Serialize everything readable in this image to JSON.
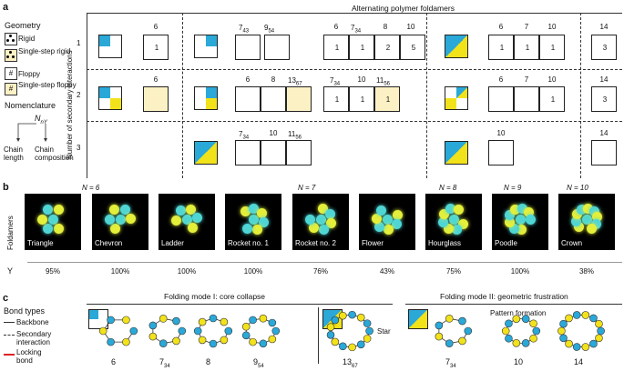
{
  "panel_a": {
    "letter": "a",
    "title": "Alternating polymer foldamers",
    "legend_title": "Geometry",
    "legend": [
      "Rigid",
      "Single-step rigid",
      "Floppy",
      "Single-step floppy"
    ],
    "legend_rigid2": "rigid",
    "legend_floppy2": "floppy",
    "nomen_title": "Nomenclature",
    "nomen_formula": "N",
    "nomen_sub": "n",
    "nomen_sub2": "B",
    "nomen_sub3": "n",
    "nomen_sub4": "Y",
    "chain_length": "Chain length",
    "chain_comp": "Chain composition",
    "yaxis": "Number of secondary interactions",
    "rows": [
      "1",
      "2",
      "3"
    ],
    "row1": {
      "g1": "6",
      "g2": [
        "7",
        "43",
        "9",
        "54"
      ],
      "g3": [
        "6",
        "7",
        "34",
        "8",
        "10"
      ],
      "g3v": [
        "1",
        "1",
        "2",
        "5"
      ],
      "g4": [
        "6",
        "7",
        "10"
      ],
      "g4v": [
        "1",
        "1",
        "1"
      ],
      "g5": "14",
      "g5v": "3",
      "g1v": "1"
    },
    "row2": {
      "g1": "6",
      "g2": [
        "6",
        "8",
        "13",
        "67"
      ],
      "g3": [
        "7",
        "34",
        "10",
        "11",
        "56"
      ],
      "g3v": [
        "1",
        "1",
        "1"
      ],
      "g4": [
        "6",
        "7",
        "10"
      ],
      "g4v": [
        "1"
      ],
      "g5": "14",
      "g5v": "3"
    },
    "row3": {
      "g2": [
        "7",
        "34",
        "10",
        "11",
        "56"
      ],
      "g4": [
        "10"
      ],
      "g5": "14"
    }
  },
  "panel_b": {
    "letter": "b",
    "ylabel": "Foldamers",
    "groups": [
      "N = 6",
      "N = 7",
      "N = 8",
      "N = 9",
      "N = 10"
    ],
    "y_label": "Y",
    "items": [
      {
        "name": "Triangle",
        "yield": "95%"
      },
      {
        "name": "Chevron",
        "yield": "100%"
      },
      {
        "name": "Ladder",
        "yield": "100%"
      },
      {
        "name": "Rocket no. 1",
        "yield": "100%"
      },
      {
        "name": "Rocket no. 2",
        "yield": "76%"
      },
      {
        "name": "Flower",
        "yield": "43%"
      },
      {
        "name": "Hourglass",
        "yield": "75%"
      },
      {
        "name": "Poodle",
        "yield": "100%"
      },
      {
        "name": "Crown",
        "yield": "38%"
      }
    ]
  },
  "panel_c": {
    "letter": "c",
    "mode1": "Folding mode I: core collapse",
    "mode2": "Folding mode II: geometric frustration",
    "bond_title": "Bond types",
    "bonds": [
      "Backbone",
      "Secondary interaction",
      "Locking bond"
    ],
    "bond2a": "Secondary",
    "bond2b": "interaction",
    "bond3a": "Locking",
    "bond3b": "bond",
    "star": "Star",
    "pattern": "Pattern formation",
    "labels": [
      {
        "n": "6",
        "s": ""
      },
      {
        "n": "7",
        "s": "34"
      },
      {
        "n": "8",
        "s": ""
      },
      {
        "n": "9",
        "s": "54"
      },
      {
        "n": "13",
        "s": "67"
      },
      {
        "n": "7",
        "s": "34"
      },
      {
        "n": "10",
        "s": ""
      },
      {
        "n": "14",
        "s": ""
      }
    ]
  },
  "colors": {
    "blue": "#2aa8d8",
    "yellow": "#f2e21a",
    "cream": "#fbf1c4",
    "cyanbead": "#4fd6d4",
    "ybead": "#e4ef3a"
  }
}
